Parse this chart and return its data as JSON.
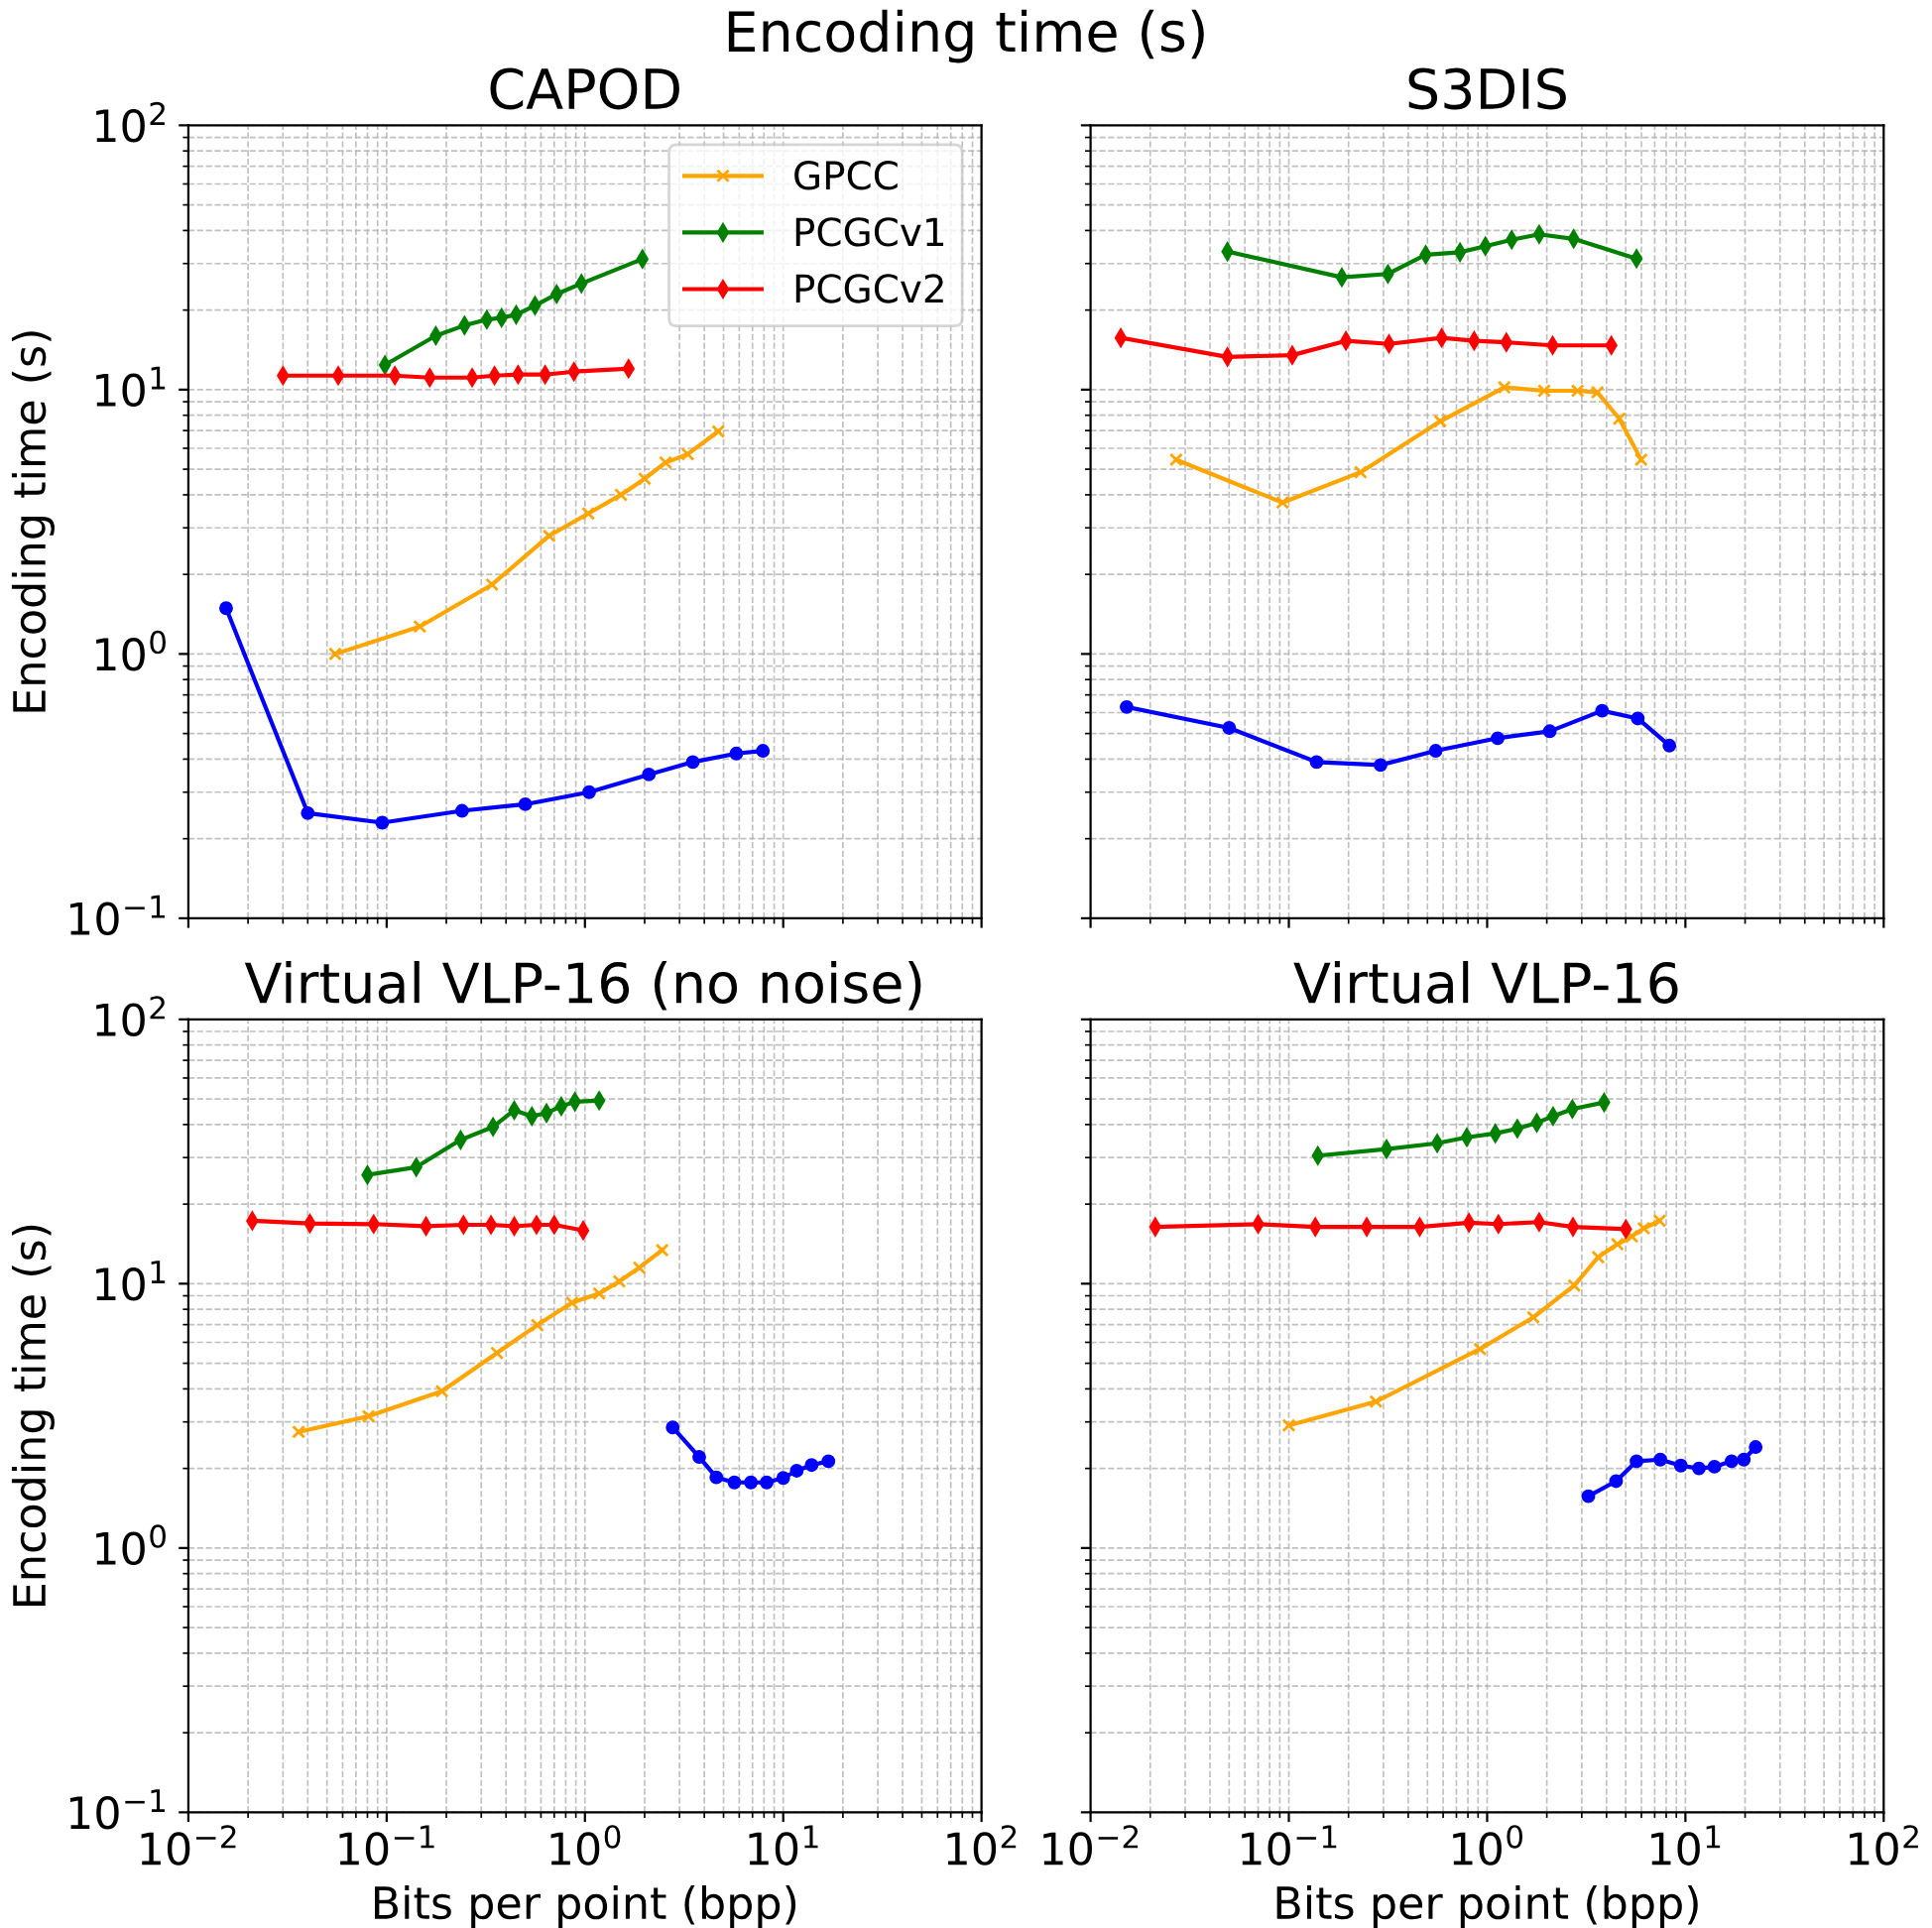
{
  "chart_data": [
    {
      "type": "line",
      "title": "CAPOD",
      "ylabel": "Encoding time (s)",
      "annotations": [
        "Encoding time (s)"
      ],
      "log": "xy",
      "grid": true,
      "legend": "top right",
      "tick_labels": "y",
      "xlim": [
        0.01,
        100
      ],
      "ylim": [
        0.1,
        100
      ],
      "yticks": [
        {
          "value": 0.1,
          "label": "10$^{−1}$"
        },
        {
          "value": 1,
          "label": "10$^{0}$"
        },
        {
          "value": 10,
          "label": "10$^{1}$"
        },
        {
          "value": 100,
          "label": "10$^{2}$"
        }
      ],
      "series": [
        {
          "color": "#0000ff",
          "marker": "circle",
          "x": [
            0.0155,
            0.04,
            0.095,
            0.24,
            0.5,
            1.05,
            2.1,
            3.5,
            5.8,
            7.9
          ],
          "values": [
            1.49,
            0.25,
            0.23,
            0.255,
            0.27,
            0.3,
            0.35,
            0.39,
            0.42,
            0.43
          ]
        },
        {
          "name": "GPCC",
          "color": "#ffa500",
          "marker": "cross",
          "x": [
            0.055,
            0.147,
            0.34,
            0.66,
            1.04,
            1.52,
            2.0,
            2.55,
            3.3,
            4.7
          ],
          "values": [
            1.0,
            1.27,
            1.83,
            2.8,
            3.4,
            4.0,
            4.6,
            5.3,
            5.7,
            6.95
          ]
        },
        {
          "name": "PCGCv1",
          "color": "#008000",
          "marker": "diamond",
          "x": [
            0.098,
            0.177,
            0.247,
            0.32,
            0.38,
            0.45,
            0.56,
            0.72,
            0.96,
            1.95
          ],
          "values": [
            12.4,
            16.0,
            17.5,
            18.4,
            18.7,
            19.2,
            20.8,
            23.0,
            25.2,
            31.2
          ]
        },
        {
          "name": "PCGCv2",
          "color": "#ff0000",
          "marker": "diamond",
          "x": [
            0.03,
            0.057,
            0.11,
            0.165,
            0.27,
            0.35,
            0.46,
            0.63,
            0.88,
            1.66
          ],
          "values": [
            11.3,
            11.3,
            11.3,
            11.1,
            11.1,
            11.3,
            11.4,
            11.4,
            11.7,
            12.0
          ]
        }
      ]
    },
    {
      "type": "line",
      "title": "S3DIS",
      "log": "xy",
      "grid": true,
      "tick_labels": false,
      "xlim": [
        0.01,
        100
      ],
      "ylim": [
        0.1,
        100
      ],
      "series": [
        {
          "color": "#0000ff",
          "marker": "circle",
          "x": [
            0.0152,
            0.05,
            0.138,
            0.29,
            0.55,
            1.13,
            2.07,
            3.8,
            5.75,
            8.3
          ],
          "values": [
            0.63,
            0.525,
            0.39,
            0.38,
            0.43,
            0.48,
            0.51,
            0.61,
            0.57,
            0.45
          ]
        },
        {
          "color": "#ffa500",
          "marker": "cross",
          "x": [
            0.027,
            0.093,
            0.23,
            0.58,
            1.22,
            1.94,
            2.86,
            3.6,
            4.64,
            5.98
          ],
          "values": [
            5.43,
            3.74,
            4.87,
            7.59,
            10.2,
            9.9,
            9.9,
            9.77,
            7.76,
            5.43
          ]
        },
        {
          "color": "#008000",
          "marker": "diamond",
          "x": [
            0.049,
            0.185,
            0.316,
            0.49,
            0.73,
            0.98,
            1.33,
            1.83,
            2.73,
            5.67
          ],
          "values": [
            33.3,
            26.6,
            27.4,
            32.4,
            33.1,
            34.9,
            36.9,
            38.7,
            37.2,
            31.3
          ]
        },
        {
          "color": "#ff0000",
          "marker": "diamond",
          "x": [
            0.0142,
            0.049,
            0.104,
            0.194,
            0.32,
            0.59,
            0.86,
            1.25,
            2.14,
            4.23
          ],
          "values": [
            15.7,
            13.3,
            13.5,
            15.3,
            14.9,
            15.7,
            15.3,
            15.1,
            14.7,
            14.7
          ]
        }
      ]
    },
    {
      "type": "line",
      "title": "Virtual VLP-16 (no noise)",
      "xlabel": "Bits per point (bpp)",
      "ylabel": "Encoding time (s)",
      "log": "xy",
      "grid": true,
      "xlim": [
        0.01,
        100
      ],
      "ylim": [
        0.1,
        100
      ],
      "xticks": [
        {
          "value": 0.01,
          "label": "10$^{−2}$"
        },
        {
          "value": 0.1,
          "label": "10$^{−1}$"
        },
        {
          "value": 1,
          "label": "10$^{0}$"
        },
        {
          "value": 10,
          "label": "10$^{1}$"
        },
        {
          "value": 100,
          "label": "10$^{2}$"
        }
      ],
      "yticks": [
        {
          "value": 0.1,
          "label": "10$^{−1}$"
        },
        {
          "value": 1,
          "label": "10$^{0}$"
        },
        {
          "value": 10,
          "label": "10$^{1}$"
        },
        {
          "value": 100,
          "label": "10$^{2}$"
        }
      ],
      "series": [
        {
          "color": "#0000ff",
          "marker": "circle",
          "x": [
            2.77,
            3.77,
            4.6,
            5.67,
            6.87,
            8.25,
            10.0,
            11.7,
            13.9,
            16.9
          ],
          "values": [
            2.86,
            2.21,
            1.85,
            1.77,
            1.77,
            1.77,
            1.84,
            1.96,
            2.06,
            2.13
          ]
        },
        {
          "color": "#ffa500",
          "marker": "cross",
          "x": [
            0.036,
            0.081,
            0.19,
            0.36,
            0.575,
            0.86,
            1.18,
            1.49,
            1.88,
            2.45
          ],
          "values": [
            2.75,
            3.15,
            3.92,
            5.47,
            6.97,
            8.47,
            9.18,
            10.2,
            11.5,
            13.4
          ]
        },
        {
          "color": "#008000",
          "marker": "diamond",
          "x": [
            0.08,
            0.141,
            0.236,
            0.344,
            0.44,
            0.54,
            0.64,
            0.76,
            0.89,
            1.18
          ],
          "values": [
            25.8,
            27.6,
            35.0,
            39.2,
            45.3,
            43.0,
            44.2,
            46.9,
            48.8,
            49.3
          ]
        },
        {
          "color": "#ff0000",
          "marker": "diamond",
          "x": [
            0.021,
            0.041,
            0.086,
            0.158,
            0.244,
            0.336,
            0.44,
            0.57,
            0.7,
            0.98
          ],
          "values": [
            17.3,
            16.9,
            16.8,
            16.5,
            16.7,
            16.7,
            16.5,
            16.7,
            16.7,
            15.9
          ]
        }
      ]
    },
    {
      "type": "line",
      "title": "Virtual VLP-16",
      "xlabel": "Bits per point (bpp)",
      "log": "xy",
      "grid": true,
      "tick_labels": "x",
      "xlim": [
        0.01,
        100
      ],
      "ylim": [
        0.1,
        100
      ],
      "xticks": [
        {
          "value": 0.01,
          "label": "10$^{−2}$"
        },
        {
          "value": 0.1,
          "label": "10$^{−1}$"
        },
        {
          "value": 1,
          "label": "10$^{0}$"
        },
        {
          "value": 10,
          "label": "10$^{1}$"
        },
        {
          "value": 100,
          "label": "10$^{2}$"
        }
      ],
      "series": [
        {
          "color": "#0000ff",
          "marker": "circle",
          "x": [
            3.24,
            4.47,
            5.67,
            7.47,
            9.48,
            11.7,
            14.0,
            17.1,
            19.7,
            22.6
          ],
          "values": [
            1.57,
            1.79,
            2.13,
            2.16,
            2.05,
            2.0,
            2.03,
            2.13,
            2.16,
            2.41
          ]
        },
        {
          "color": "#ffa500",
          "marker": "cross",
          "x": [
            0.1,
            0.275,
            0.92,
            1.71,
            2.75,
            3.63,
            4.54,
            5.37,
            6.17,
            7.41
          ],
          "values": [
            2.91,
            3.58,
            5.66,
            7.46,
            9.84,
            12.6,
            14.1,
            15.1,
            16.2,
            17.3
          ]
        },
        {
          "color": "#008000",
          "marker": "diamond",
          "x": [
            0.14,
            0.311,
            0.56,
            0.79,
            1.1,
            1.42,
            1.78,
            2.15,
            2.69,
            3.89
          ],
          "values": [
            30.5,
            32.3,
            34.0,
            35.8,
            37.0,
            38.6,
            40.6,
            43.0,
            45.8,
            48.5
          ]
        },
        {
          "color": "#ff0000",
          "marker": "diamond",
          "x": [
            0.0212,
            0.07,
            0.136,
            0.247,
            0.457,
            0.81,
            1.14,
            1.83,
            2.71,
            5.01
          ],
          "values": [
            16.4,
            16.8,
            16.4,
            16.4,
            16.4,
            17.0,
            16.8,
            17.1,
            16.4,
            16.1
          ]
        }
      ]
    }
  ]
}
